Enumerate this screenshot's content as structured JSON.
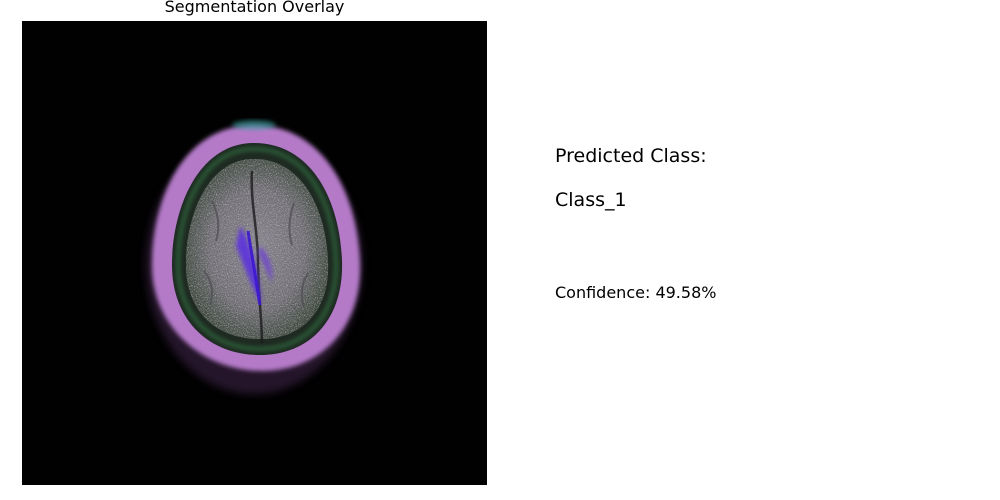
{
  "overlay": {
    "title": "Segmentation Overlay"
  },
  "prediction": {
    "heading": "Predicted Class:",
    "class_name": "Class_1",
    "confidence_text": "Confidence: 49.58%"
  },
  "colors": {
    "background": "#ffffff",
    "scan_background": "#010101",
    "skull_ring": "#b47ac8",
    "brain_tissue": "#7c7a7e",
    "ventricle_highlight": "#5a2ee0",
    "edge_tint": "#2a6a3a"
  }
}
